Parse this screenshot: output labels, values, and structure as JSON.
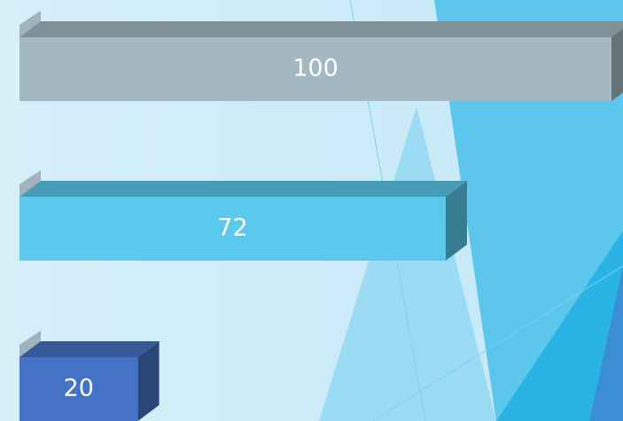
{
  "chart_data": {
    "type": "bar",
    "orientation": "horizontal",
    "categories": [
      null,
      null,
      null
    ],
    "values": [
      100,
      72,
      20
    ],
    "colors": [
      "#a3b8c2",
      "#5bc8ec",
      "#4472c4"
    ]
  }
}
